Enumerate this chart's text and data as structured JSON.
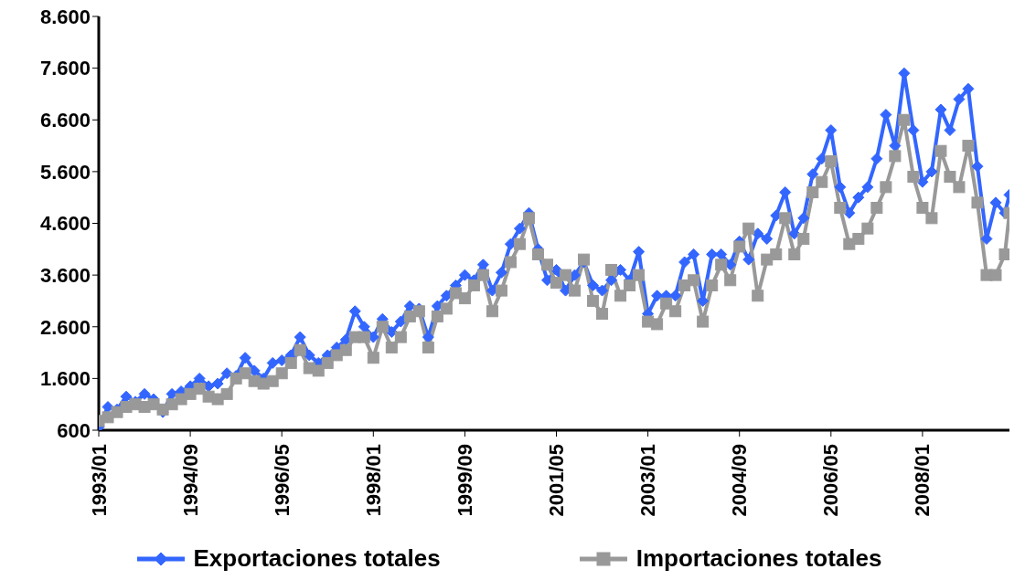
{
  "chart_data": {
    "type": "line",
    "x": [
      "1993-01",
      "1993-03",
      "1993-05",
      "1993-07",
      "1993-09",
      "1993-11",
      "1994-01",
      "1994-03",
      "1994-05",
      "1994-07",
      "1994-09",
      "1994-11",
      "1995-01",
      "1995-03",
      "1995-05",
      "1995-07",
      "1995-09",
      "1995-11",
      "1996-01",
      "1996-03",
      "1996-05",
      "1996-07",
      "1996-09",
      "1996-11",
      "1997-01",
      "1997-03",
      "1997-05",
      "1997-07",
      "1997-09",
      "1997-11",
      "1998-01",
      "1998-03",
      "1998-05",
      "1998-07",
      "1998-09",
      "1998-11",
      "1999-01",
      "1999-03",
      "1999-05",
      "1999-07",
      "1999-09",
      "1999-11",
      "2000-01",
      "2000-03",
      "2000-05",
      "2000-07",
      "2000-09",
      "2000-11",
      "2001-01",
      "2001-03",
      "2001-05",
      "2001-07",
      "2001-09",
      "2001-11",
      "2002-01",
      "2002-03",
      "2002-05",
      "2002-07",
      "2002-09",
      "2002-11",
      "2003-01",
      "2003-03",
      "2003-05",
      "2003-07",
      "2003-09",
      "2003-11",
      "2004-01",
      "2004-03",
      "2004-05",
      "2004-07",
      "2004-09",
      "2004-11",
      "2005-01",
      "2005-03",
      "2005-05",
      "2005-07",
      "2005-09",
      "2005-11",
      "2006-01",
      "2006-03",
      "2006-05",
      "2006-07",
      "2006-09",
      "2006-11",
      "2007-01",
      "2007-03",
      "2007-05",
      "2007-07",
      "2007-09",
      "2007-11",
      "2008-01",
      "2008-03",
      "2008-05",
      "2008-07",
      "2008-09",
      "2008-11",
      "2009-01",
      "2009-03",
      "2009-05",
      "2009-07",
      "2009-08"
    ],
    "series": [
      {
        "name": "Exportaciones totales",
        "color": "#3366ff",
        "marker": "diamond",
        "values": [
          660,
          1050,
          1000,
          1250,
          1150,
          1300,
          1200,
          950,
          1300,
          1350,
          1450,
          1600,
          1450,
          1500,
          1700,
          1650,
          2000,
          1750,
          1600,
          1900,
          1950,
          2050,
          2400,
          2050,
          1900,
          2050,
          2200,
          2350,
          2900,
          2600,
          2400,
          2750,
          2500,
          2700,
          3000,
          2950,
          2400,
          3000,
          3200,
          3400,
          3600,
          3500,
          3800,
          3300,
          3650,
          4200,
          4500,
          4800,
          4100,
          3500,
          3700,
          3300,
          3600,
          3850,
          3400,
          3300,
          3500,
          3700,
          3500,
          4050,
          2850,
          3200,
          3200,
          3200,
          3850,
          4000,
          3100,
          4000,
          4000,
          3800,
          4250,
          3900,
          4400,
          4300,
          4750,
          5200,
          4400,
          4700,
          5550,
          5850,
          6400,
          5300,
          4800,
          5100,
          5300,
          5850,
          6700,
          6100,
          7500,
          6400,
          5400,
          5600,
          6800,
          6400,
          7000,
          7200,
          5700,
          4300,
          5000,
          4800,
          5150
        ]
      },
      {
        "name": "Importaciones totales",
        "color": "#999999",
        "marker": "square",
        "values": [
          780,
          850,
          950,
          1050,
          1100,
          1050,
          1100,
          1000,
          1100,
          1200,
          1300,
          1400,
          1250,
          1200,
          1300,
          1600,
          1700,
          1550,
          1500,
          1550,
          1700,
          1900,
          2150,
          1800,
          1750,
          1900,
          2050,
          2150,
          2400,
          2400,
          2000,
          2600,
          2200,
          2400,
          2800,
          2900,
          2200,
          2800,
          2950,
          3250,
          3150,
          3400,
          3600,
          2900,
          3300,
          3850,
          4200,
          4700,
          4000,
          3800,
          3450,
          3600,
          3300,
          3900,
          3100,
          2850,
          3700,
          3200,
          3400,
          3600,
          2700,
          2650,
          3050,
          2900,
          3400,
          3500,
          2700,
          3400,
          3800,
          3500,
          4150,
          4500,
          3200,
          3900,
          4000,
          4700,
          4000,
          4300,
          5200,
          5400,
          5800,
          4900,
          4200,
          4300,
          4500,
          4900,
          5300,
          5900,
          6600,
          5500,
          4900,
          4700,
          6000,
          5500,
          5300,
          6100,
          5000,
          3600,
          3600,
          4000,
          4800
        ]
      }
    ],
    "xlim": [
      "1993-01",
      "2009-08"
    ],
    "xticks": [
      {
        "value": "1993-01",
        "label": "1993/01"
      },
      {
        "value": "1994-09",
        "label": "1994/09"
      },
      {
        "value": "1996-05",
        "label": "1996/05"
      },
      {
        "value": "1998-01",
        "label": "1998/01"
      },
      {
        "value": "1999-09",
        "label": "1999/09"
      },
      {
        "value": "2001-05",
        "label": "2001/05"
      },
      {
        "value": "2003-01",
        "label": "2003/01"
      },
      {
        "value": "2004-09",
        "label": "2004/09"
      },
      {
        "value": "2006-05",
        "label": "2006/05"
      },
      {
        "value": "2008-01",
        "label": "2008/01"
      }
    ],
    "ylim": [
      600,
      8600
    ],
    "yticks": [
      {
        "value": 600,
        "label": "600"
      },
      {
        "value": 1600,
        "label": "1.600"
      },
      {
        "value": 2600,
        "label": "2.600"
      },
      {
        "value": 3600,
        "label": "3.600"
      },
      {
        "value": 4600,
        "label": "4.600"
      },
      {
        "value": 5600,
        "label": "5.600"
      },
      {
        "value": 6600,
        "label": "6.600"
      },
      {
        "value": 7600,
        "label": "7.600"
      },
      {
        "value": 8600,
        "label": "8.600"
      }
    ],
    "grid": false,
    "legend": "bottom",
    "line_style": "solid"
  }
}
